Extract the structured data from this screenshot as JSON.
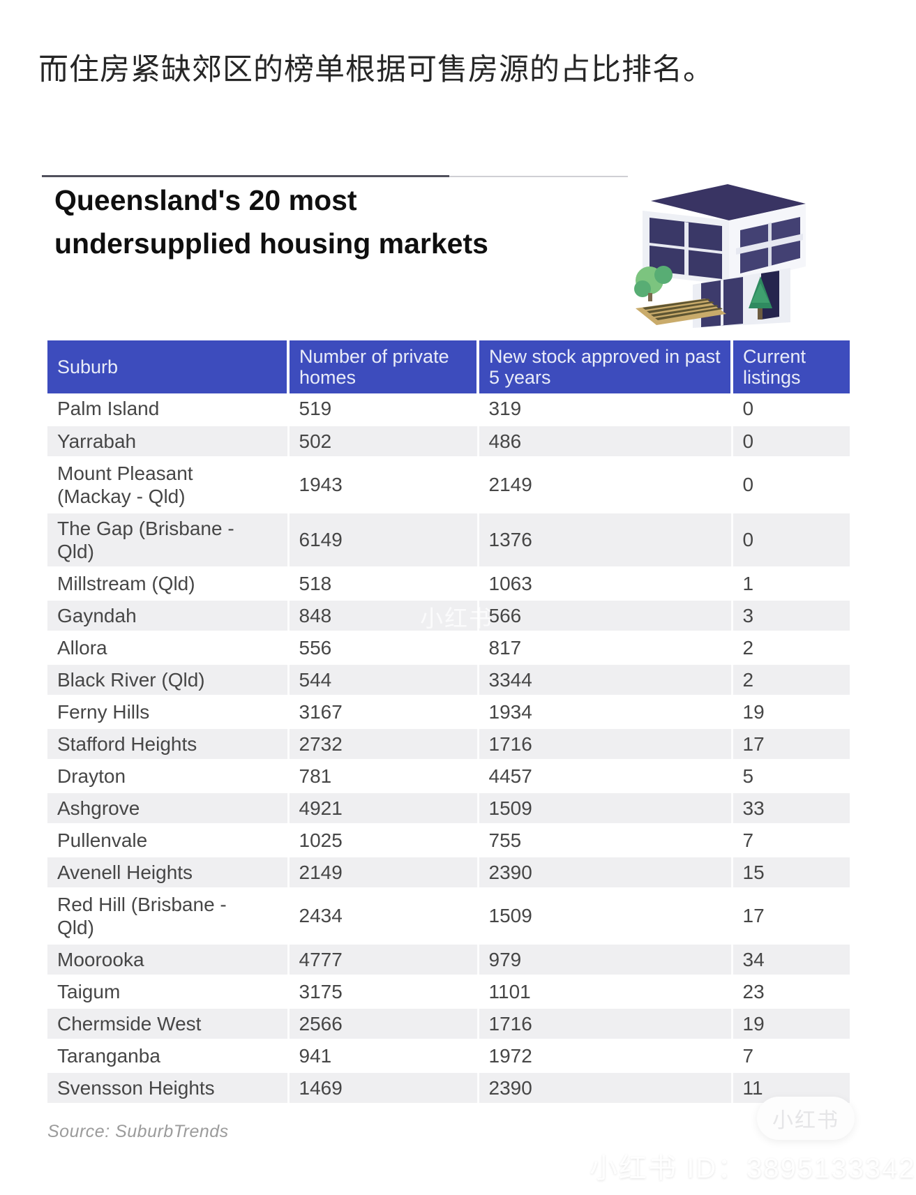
{
  "caption": {
    "text_zh": "而住房紧缺郊区的榜单根据可售房源的占比排名。"
  },
  "infographic": {
    "title_line1": "Queensland's 20 most",
    "title_line2": "undersupplied housing markets",
    "source": "Source: SuburbTrends"
  },
  "chart_data": {
    "type": "table",
    "title": "Queensland's 20 most undersupplied housing markets",
    "columns": [
      "Suburb",
      "Number of private homes",
      "New stock approved in past 5 years",
      "Current listings"
    ],
    "rows": [
      [
        "Palm Island",
        "519",
        "319",
        "0"
      ],
      [
        "Yarrabah",
        "502",
        "486",
        "0"
      ],
      [
        "Mount Pleasant\n(Mackay - Qld)",
        "1943",
        "2149",
        "0"
      ],
      [
        "The Gap (Brisbane -\nQld)",
        "6149",
        "1376",
        "0"
      ],
      [
        "Millstream (Qld)",
        "518",
        "1063",
        "1"
      ],
      [
        "Gayndah",
        "848",
        "566",
        "3"
      ],
      [
        "Allora",
        "556",
        "817",
        "2"
      ],
      [
        "Black River (Qld)",
        "544",
        "3344",
        "2"
      ],
      [
        "Ferny Hills",
        "3167",
        "1934",
        "19"
      ],
      [
        "Stafford Heights",
        "2732",
        "1716",
        "17"
      ],
      [
        "Drayton",
        "781",
        "4457",
        "5"
      ],
      [
        "Ashgrove",
        "4921",
        "1509",
        "33"
      ],
      [
        "Pullenvale",
        "1025",
        "755",
        "7"
      ],
      [
        "Avenell Heights",
        "2149",
        "2390",
        "15"
      ],
      [
        "Red Hill (Brisbane -\nQld)",
        "2434",
        "1509",
        "17"
      ],
      [
        "Moorooka",
        "4777",
        "979",
        "34"
      ],
      [
        "Taigum",
        "3175",
        "1101",
        "23"
      ],
      [
        "Chermside West",
        "2566",
        "1716",
        "19"
      ],
      [
        "Taranganba",
        "941",
        "1972",
        "7"
      ],
      [
        "Svensson Heights",
        "1469",
        "2390",
        "11"
      ]
    ],
    "source": "Source: SuburbTrends",
    "legend_position": "none",
    "grid": false
  },
  "watermarks": {
    "inline": "小红书",
    "badge": "小红书",
    "footer_id": "小红书 ID：3895133342"
  },
  "colors": {
    "header_bg": "#3d4cbd",
    "row_alt_bg": "#efeff1",
    "header_text": "#e9ecf8",
    "body_text": "#464646"
  }
}
